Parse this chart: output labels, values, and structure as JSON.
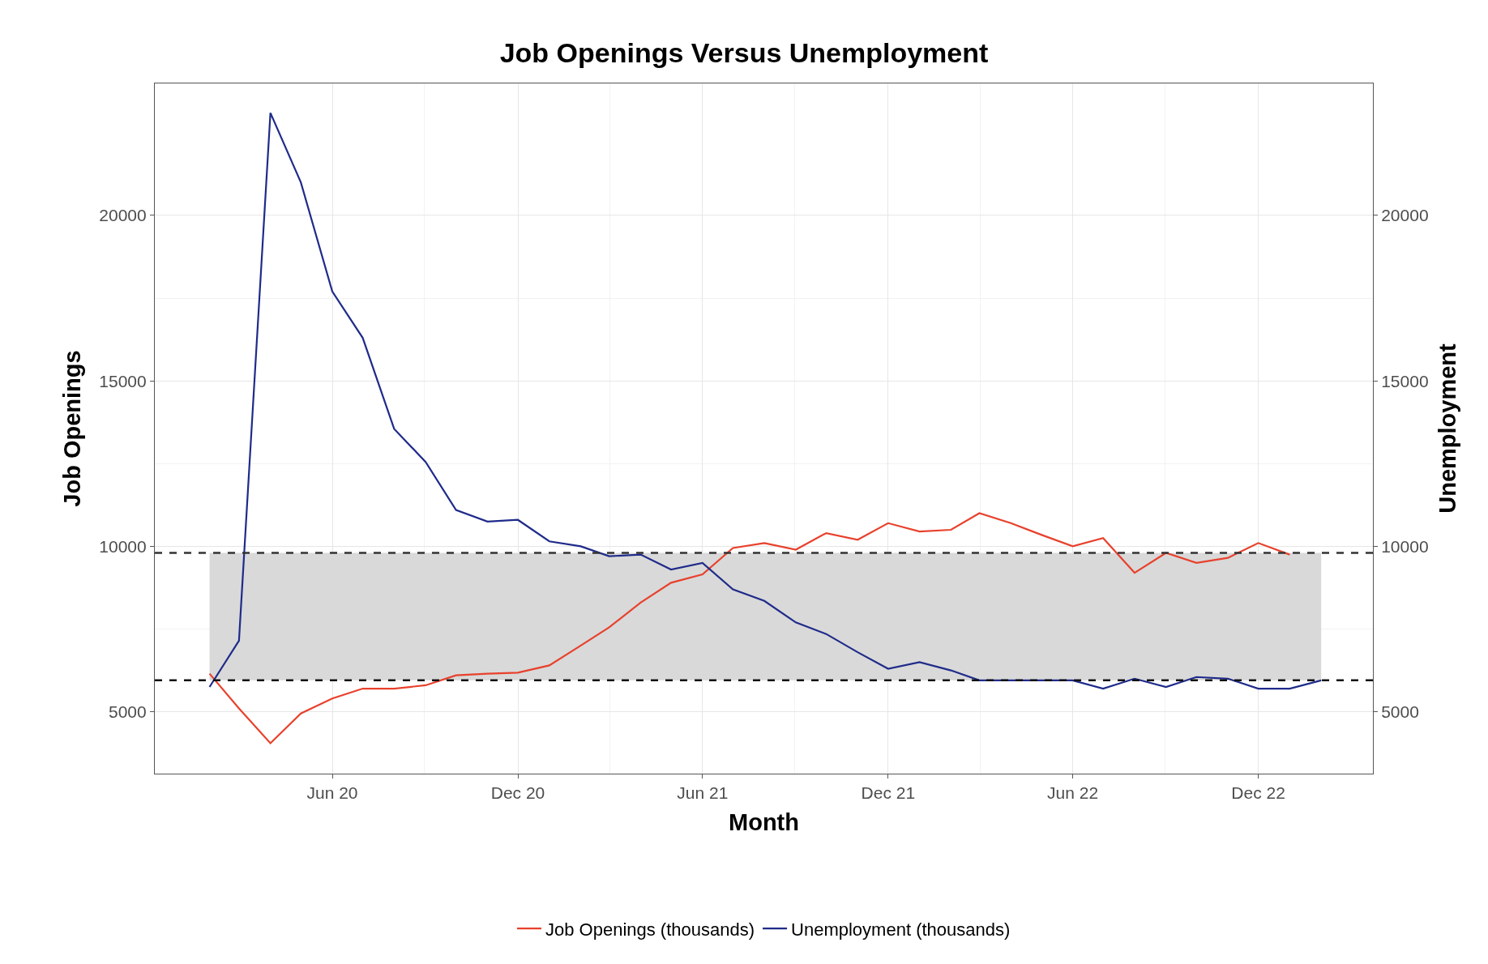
{
  "chart_data": {
    "type": "line",
    "title": "Job Openings Versus Unemployment",
    "xlabel": "Month",
    "ylabel": "Job Openings",
    "y2label": "Unemployment",
    "x": [
      "2020-02",
      "2020-03",
      "2020-04",
      "2020-05",
      "2020-06",
      "2020-07",
      "2020-08",
      "2020-09",
      "2020-10",
      "2020-11",
      "2020-12",
      "2021-01",
      "2021-02",
      "2021-03",
      "2021-04",
      "2021-05",
      "2021-06",
      "2021-07",
      "2021-08",
      "2021-09",
      "2021-10",
      "2021-11",
      "2021-12",
      "2022-01",
      "2022-02",
      "2022-03",
      "2022-04",
      "2022-05",
      "2022-06",
      "2022-07",
      "2022-08",
      "2022-09",
      "2022-10",
      "2022-11",
      "2022-12",
      "2023-01",
      "2023-02"
    ],
    "series": [
      {
        "name": "Job Openings (thousands)",
        "color": "#e8412c",
        "values": [
          6150,
          5100,
          4050,
          4950,
          5400,
          5700,
          5700,
          5800,
          6100,
          6150,
          6180,
          6400,
          7000,
          7550,
          8300,
          8900,
          9150,
          9950,
          10100,
          9900,
          10400,
          10200,
          10700,
          10450,
          10500,
          11000,
          10700,
          10350,
          10000,
          10250,
          9200,
          9800,
          9500,
          9650,
          10100,
          9750,
          null
        ]
      },
      {
        "name": "Unemployment (thousands)",
        "color": "#1f2b8a",
        "axis": "y2",
        "values": [
          5750,
          7150,
          23100,
          21000,
          17700,
          16300,
          13550,
          12550,
          11100,
          10750,
          10800,
          10150,
          10000,
          9700,
          9750,
          9300,
          9500,
          8700,
          8350,
          7700,
          7350,
          6800,
          6300,
          6500,
          6250,
          5950,
          5950,
          5950,
          5950,
          5700,
          6000,
          5750,
          6050,
          6000,
          5700,
          5700,
          5950
        ]
      }
    ],
    "xlim": [
      "2019-12-09",
      "2023-03-24"
    ],
    "xticks": [
      {
        "value": "2020-06-01",
        "label": "Jun 20"
      },
      {
        "value": "2020-12-01",
        "label": "Dec 20"
      },
      {
        "value": "2021-06-01",
        "label": "Jun 21"
      },
      {
        "value": "2021-12-01",
        "label": "Dec 21"
      },
      {
        "value": "2022-06-01",
        "label": "Jun 22"
      },
      {
        "value": "2022-12-01",
        "label": "Dec 22"
      }
    ],
    "ylim": [
      3130,
      23990
    ],
    "yticks": [
      5000,
      10000,
      15000,
      20000
    ],
    "y2lim": [
      3130,
      23990
    ],
    "y2ticks": [
      5000,
      10000,
      15000,
      20000
    ],
    "ref_lines": [
      {
        "axis": "y",
        "value": 9800,
        "line_style": "dashed",
        "color": "#333333"
      },
      {
        "axis": "y",
        "value": 5950,
        "line_style": "dashed",
        "color": "#111111"
      }
    ],
    "bands": [
      {
        "axis": "y",
        "from": 5950,
        "to": 9800,
        "color": "#d9d9d9"
      }
    ],
    "grid": true,
    "legend": "bottom",
    "line_style": "solid",
    "marker": "none"
  }
}
